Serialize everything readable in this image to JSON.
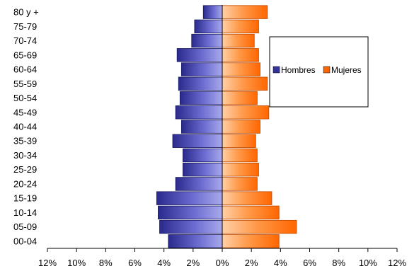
{
  "chart_data": {
    "type": "bar",
    "orientation": "horizontal",
    "style": "population-pyramid",
    "categories": [
      "00-04",
      "05-09",
      "10-14",
      "15-19",
      "20-24",
      "25-29",
      "30-34",
      "35-39",
      "40-44",
      "45-49",
      "50-54",
      "55-59",
      "60-64",
      "65-69",
      "70-74",
      "75-79",
      "80 y +"
    ],
    "series": [
      {
        "name": "Hombres",
        "color": "#33339a",
        "values": [
          3.7,
          4.3,
          4.4,
          4.5,
          3.2,
          2.7,
          2.7,
          3.4,
          2.8,
          3.2,
          2.9,
          3.0,
          2.8,
          3.1,
          2.1,
          1.9,
          1.3
        ]
      },
      {
        "name": "Mujeres",
        "color": "#ff6600",
        "values": [
          3.9,
          5.1,
          3.9,
          3.4,
          2.4,
          2.5,
          2.4,
          2.3,
          2.6,
          3.2,
          2.4,
          3.1,
          2.6,
          2.5,
          2.2,
          2.5,
          3.1
        ]
      }
    ],
    "xlim": [
      -12,
      12
    ],
    "x_ticks": [
      "12%",
      "10%",
      "8%",
      "6%",
      "4%",
      "2%",
      "0%",
      "2%",
      "4%",
      "6%",
      "8%",
      "10%",
      "12%"
    ],
    "grid": false,
    "legend": {
      "placement": "upper-right",
      "entries": [
        "Hombres",
        "Mujeres"
      ]
    }
  }
}
